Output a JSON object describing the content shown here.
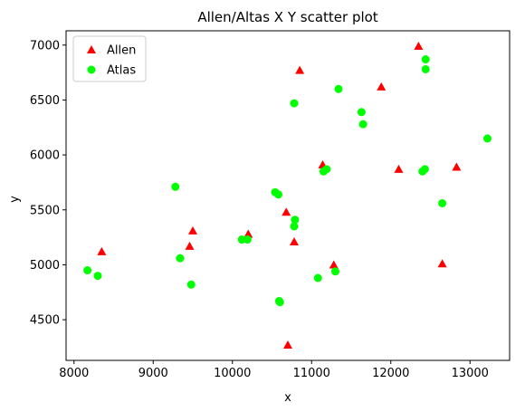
{
  "chart_data": {
    "type": "scatter",
    "title": "Allen/Altas X Y scatter plot",
    "xlabel": "x",
    "ylabel": "y",
    "xlim": [
      7900,
      13500
    ],
    "ylim": [
      4130,
      7130
    ],
    "xticks": [
      8000,
      9000,
      10000,
      11000,
      12000,
      13000
    ],
    "yticks": [
      4500,
      5000,
      5500,
      6000,
      6500,
      7000
    ],
    "grid": false,
    "legend_position": "upper-left",
    "series": [
      {
        "name": "Allen",
        "marker": "triangle",
        "color": "#ff0000",
        "points": [
          [
            8350,
            5120
          ],
          [
            9460,
            5170
          ],
          [
            9500,
            5310
          ],
          [
            10200,
            5280
          ],
          [
            10680,
            5480
          ],
          [
            10700,
            4270
          ],
          [
            10780,
            5210
          ],
          [
            10850,
            6770
          ],
          [
            11140,
            5910
          ],
          [
            11280,
            5000
          ],
          [
            11880,
            6620
          ],
          [
            12100,
            5870
          ],
          [
            12350,
            6990
          ],
          [
            12650,
            5010
          ],
          [
            12830,
            5890
          ]
        ]
      },
      {
        "name": "Atlas",
        "marker": "circle",
        "color": "#00ff00",
        "points": [
          [
            8170,
            4950
          ],
          [
            8300,
            4900
          ],
          [
            9280,
            5710
          ],
          [
            9340,
            5060
          ],
          [
            9480,
            4820
          ],
          [
            10120,
            5230
          ],
          [
            10190,
            5230
          ],
          [
            10540,
            5660
          ],
          [
            10580,
            5640
          ],
          [
            10590,
            4670
          ],
          [
            10600,
            4660
          ],
          [
            10780,
            6470
          ],
          [
            10790,
            5410
          ],
          [
            10780,
            5350
          ],
          [
            11080,
            4880
          ],
          [
            11150,
            5850
          ],
          [
            11190,
            5870
          ],
          [
            11300,
            4940
          ],
          [
            11340,
            6600
          ],
          [
            11630,
            6390
          ],
          [
            11650,
            6280
          ],
          [
            12400,
            5850
          ],
          [
            12430,
            5870
          ],
          [
            12440,
            6870
          ],
          [
            12440,
            6780
          ],
          [
            12650,
            5560
          ],
          [
            13220,
            6150
          ]
        ]
      }
    ]
  }
}
